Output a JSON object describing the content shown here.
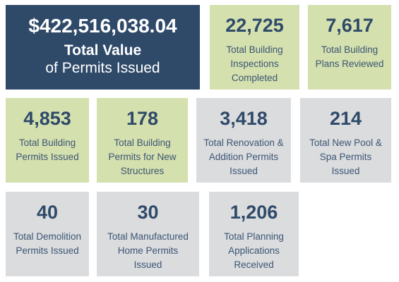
{
  "hero": {
    "amount": "$422,516,038.04",
    "title_line1": "Total Value",
    "title_line2": "of Permits Issued"
  },
  "tiles": [
    {
      "value": "22,725",
      "label_lines": [
        "Total Building",
        "Inspections",
        "Completed"
      ]
    },
    {
      "value": "7,617",
      "label_lines": [
        "Total Building",
        "Plans Reviewed"
      ]
    },
    {
      "value": "4,853",
      "label_lines": [
        "Total Building",
        "Permits Issued"
      ]
    },
    {
      "value": "178",
      "label_lines": [
        "Total Building",
        "Permits for New",
        "Structures"
      ]
    },
    {
      "value": "3,418",
      "label_lines": [
        "Total Renovation &",
        "Addition Permits",
        "Issued"
      ]
    },
    {
      "value": "214",
      "label_lines": [
        "Total New Pool &",
        "Spa Permits",
        "Issued"
      ]
    },
    {
      "value": "40",
      "label_lines": [
        "Total Demolition",
        "Permits Issued"
      ]
    },
    {
      "value": "30",
      "label_lines": [
        "Total Manufactured",
        "Home Permits",
        "Issued"
      ]
    },
    {
      "value": "1,206",
      "label_lines": [
        "Total Planning",
        "Applications",
        "Received"
      ]
    }
  ],
  "colors": {
    "navy": "#2f4a69",
    "green_tile": "#d4e0ae",
    "gray_tile": "#dadcde"
  }
}
